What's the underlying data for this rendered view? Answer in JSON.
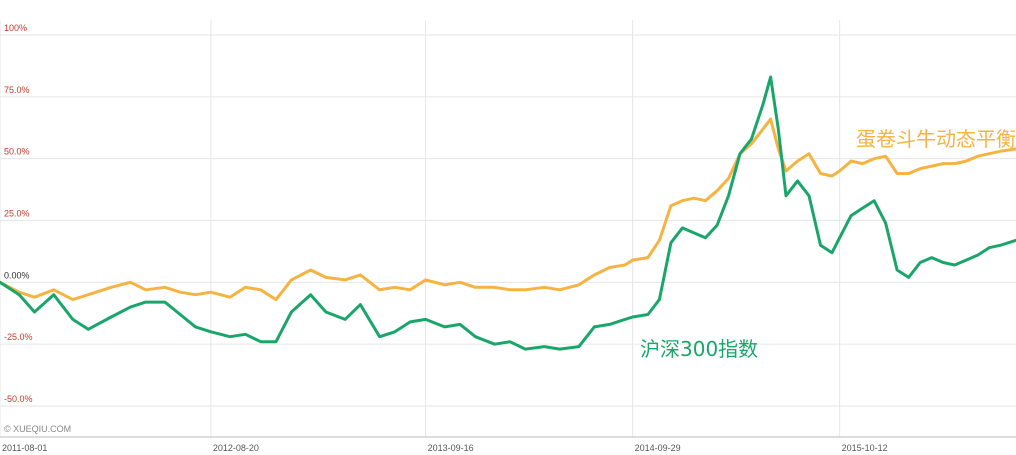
{
  "watermark": "© XUEQIU.COM",
  "chart_data": {
    "type": "line",
    "ylim": [
      -50,
      100
    ],
    "y_ticks": [
      {
        "value": 100,
        "label": "100%"
      },
      {
        "value": 75,
        "label": "75.0%"
      },
      {
        "value": 50,
        "label": "50.0%"
      },
      {
        "value": 25,
        "label": "25.0%"
      },
      {
        "value": 0,
        "label": "0.00%"
      },
      {
        "value": -25,
        "label": "-25.0%"
      },
      {
        "value": -50,
        "label": "-50.0%"
      }
    ],
    "x_ticks": [
      "2011-08-01",
      "2012-08-20",
      "2013-09-16",
      "2014-09-29",
      "2015-10-12"
    ],
    "x_start": "2011-08-01",
    "x_end": "2016-08-29",
    "grid": true,
    "colors": {
      "positive_label": "#c0392b",
      "zero_label": "#333333",
      "negative_label": "#c0392b",
      "grid": "#e6e6e6",
      "axis": "#bbbbbb"
    },
    "series": [
      {
        "name": "蛋卷斗牛动态平衡",
        "color": "#f5b342",
        "points": [
          [
            "2011-08-01",
            0
          ],
          [
            "2011-09-05",
            -4
          ],
          [
            "2011-10-03",
            -6
          ],
          [
            "2011-11-07",
            -3
          ],
          [
            "2011-12-12",
            -7
          ],
          [
            "2012-01-09",
            -5
          ],
          [
            "2012-02-20",
            -2
          ],
          [
            "2012-03-26",
            0
          ],
          [
            "2012-04-23",
            -3
          ],
          [
            "2012-05-28",
            -2
          ],
          [
            "2012-06-25",
            -4
          ],
          [
            "2012-07-23",
            -5
          ],
          [
            "2012-08-20",
            -4
          ],
          [
            "2012-09-24",
            -6
          ],
          [
            "2012-10-22",
            -2
          ],
          [
            "2012-11-19",
            -3
          ],
          [
            "2012-12-17",
            -7
          ],
          [
            "2013-01-14",
            1
          ],
          [
            "2013-02-18",
            5
          ],
          [
            "2013-03-18",
            2
          ],
          [
            "2013-04-22",
            1
          ],
          [
            "2013-05-20",
            3
          ],
          [
            "2013-06-24",
            -3
          ],
          [
            "2013-07-22",
            -2
          ],
          [
            "2013-08-19",
            -3
          ],
          [
            "2013-09-16",
            1
          ],
          [
            "2013-10-21",
            -1
          ],
          [
            "2013-11-18",
            0
          ],
          [
            "2013-12-16",
            -2
          ],
          [
            "2014-01-20",
            -2
          ],
          [
            "2014-02-17",
            -3
          ],
          [
            "2014-03-17",
            -3
          ],
          [
            "2014-04-21",
            -2
          ],
          [
            "2014-05-19",
            -3
          ],
          [
            "2014-06-23",
            -1
          ],
          [
            "2014-07-21",
            3
          ],
          [
            "2014-08-18",
            6
          ],
          [
            "2014-09-15",
            7
          ],
          [
            "2014-09-29",
            9
          ],
          [
            "2014-10-27",
            10
          ],
          [
            "2014-11-17",
            17
          ],
          [
            "2014-12-08",
            31
          ],
          [
            "2014-12-29",
            33
          ],
          [
            "2015-01-19",
            34
          ],
          [
            "2015-02-09",
            33
          ],
          [
            "2015-03-02",
            37
          ],
          [
            "2015-03-23",
            42
          ],
          [
            "2015-04-13",
            52
          ],
          [
            "2015-05-04",
            56
          ],
          [
            "2015-05-25",
            62
          ],
          [
            "2015-06-08",
            66
          ],
          [
            "2015-06-22",
            54
          ],
          [
            "2015-07-06",
            45
          ],
          [
            "2015-07-27",
            49
          ],
          [
            "2015-08-17",
            52
          ],
          [
            "2015-09-07",
            44
          ],
          [
            "2015-09-28",
            43
          ],
          [
            "2015-10-12",
            45
          ],
          [
            "2015-11-02",
            49
          ],
          [
            "2015-11-23",
            48
          ],
          [
            "2015-12-14",
            50
          ],
          [
            "2016-01-04",
            51
          ],
          [
            "2016-01-25",
            44
          ],
          [
            "2016-02-15",
            44
          ],
          [
            "2016-03-07",
            46
          ],
          [
            "2016-03-28",
            47
          ],
          [
            "2016-04-18",
            48
          ],
          [
            "2016-05-09",
            48
          ],
          [
            "2016-05-30",
            49
          ],
          [
            "2016-06-20",
            51
          ],
          [
            "2016-07-11",
            52
          ],
          [
            "2016-08-01",
            53
          ],
          [
            "2016-08-29",
            54
          ]
        ]
      },
      {
        "name": "沪深300指数",
        "color": "#1aa66b",
        "points": [
          [
            "2011-08-01",
            0
          ],
          [
            "2011-09-05",
            -5
          ],
          [
            "2011-10-03",
            -12
          ],
          [
            "2011-11-07",
            -5
          ],
          [
            "2011-12-12",
            -15
          ],
          [
            "2012-01-09",
            -19
          ],
          [
            "2012-02-20",
            -14
          ],
          [
            "2012-03-26",
            -10
          ],
          [
            "2012-04-23",
            -8
          ],
          [
            "2012-05-28",
            -8
          ],
          [
            "2012-06-25",
            -13
          ],
          [
            "2012-07-23",
            -18
          ],
          [
            "2012-08-20",
            -20
          ],
          [
            "2012-09-24",
            -22
          ],
          [
            "2012-10-22",
            -21
          ],
          [
            "2012-11-19",
            -24
          ],
          [
            "2012-12-17",
            -24
          ],
          [
            "2013-01-14",
            -12
          ],
          [
            "2013-02-18",
            -5
          ],
          [
            "2013-03-18",
            -12
          ],
          [
            "2013-04-22",
            -15
          ],
          [
            "2013-05-20",
            -9
          ],
          [
            "2013-06-24",
            -22
          ],
          [
            "2013-07-22",
            -20
          ],
          [
            "2013-08-19",
            -16
          ],
          [
            "2013-09-16",
            -15
          ],
          [
            "2013-10-21",
            -18
          ],
          [
            "2013-11-18",
            -17
          ],
          [
            "2013-12-16",
            -22
          ],
          [
            "2014-01-20",
            -25
          ],
          [
            "2014-02-17",
            -24
          ],
          [
            "2014-03-17",
            -27
          ],
          [
            "2014-04-21",
            -26
          ],
          [
            "2014-05-19",
            -27
          ],
          [
            "2014-06-23",
            -26
          ],
          [
            "2014-07-21",
            -18
          ],
          [
            "2014-08-18",
            -17
          ],
          [
            "2014-09-15",
            -15
          ],
          [
            "2014-09-29",
            -14
          ],
          [
            "2014-10-27",
            -13
          ],
          [
            "2014-11-17",
            -7
          ],
          [
            "2014-12-08",
            16
          ],
          [
            "2014-12-29",
            22
          ],
          [
            "2015-01-19",
            20
          ],
          [
            "2015-02-09",
            18
          ],
          [
            "2015-03-02",
            23
          ],
          [
            "2015-03-23",
            35
          ],
          [
            "2015-04-13",
            52
          ],
          [
            "2015-05-04",
            58
          ],
          [
            "2015-05-25",
            72
          ],
          [
            "2015-06-08",
            83
          ],
          [
            "2015-06-22",
            62
          ],
          [
            "2015-07-06",
            35
          ],
          [
            "2015-07-27",
            41
          ],
          [
            "2015-08-17",
            35
          ],
          [
            "2015-09-07",
            15
          ],
          [
            "2015-09-28",
            12
          ],
          [
            "2015-10-12",
            18
          ],
          [
            "2015-11-02",
            27
          ],
          [
            "2015-11-23",
            30
          ],
          [
            "2015-12-14",
            33
          ],
          [
            "2016-01-04",
            24
          ],
          [
            "2016-01-25",
            5
          ],
          [
            "2016-02-15",
            2
          ],
          [
            "2016-03-07",
            8
          ],
          [
            "2016-03-28",
            10
          ],
          [
            "2016-04-18",
            8
          ],
          [
            "2016-05-09",
            7
          ],
          [
            "2016-05-30",
            9
          ],
          [
            "2016-06-20",
            11
          ],
          [
            "2016-07-11",
            14
          ],
          [
            "2016-08-01",
            15
          ],
          [
            "2016-08-29",
            17
          ]
        ]
      }
    ]
  }
}
